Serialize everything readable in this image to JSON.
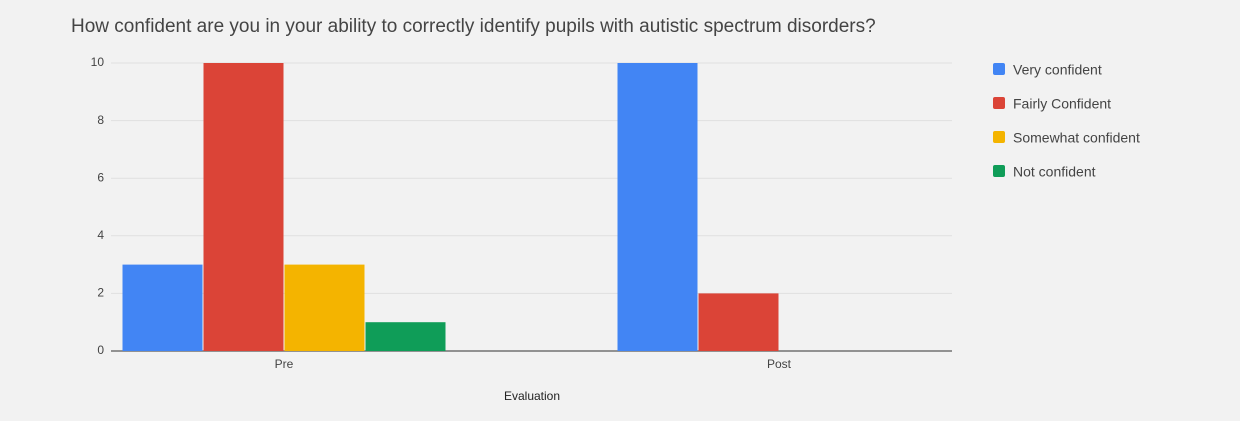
{
  "chart_data": {
    "type": "bar",
    "title": "How confident are you in your ability to correctly identify pupils with autistic spectrum disorders?",
    "x_label": "Evaluation",
    "categories": [
      "Pre",
      "Post"
    ],
    "series": [
      {
        "name": "Very confident",
        "color": "#4285f4",
        "values": [
          3,
          10
        ]
      },
      {
        "name": "Fairly Confident",
        "color": "#db4437",
        "values": [
          10,
          2
        ]
      },
      {
        "name": "Somewhat confident",
        "color": "#f4b400",
        "values": [
          3,
          0
        ]
      },
      {
        "name": "Not confident",
        "color": "#0f9d58",
        "values": [
          1,
          0
        ]
      }
    ],
    "ylim": [
      0,
      10
    ],
    "yticks": [
      0,
      2,
      4,
      6,
      8,
      10
    ],
    "grid": true,
    "legend": "right"
  }
}
